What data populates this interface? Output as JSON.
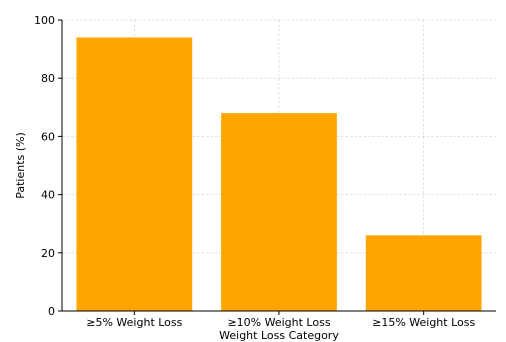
{
  "chart_data": {
    "type": "bar",
    "categories": [
      "≥5% Weight Loss",
      "≥10% Weight Loss",
      "≥15% Weight Loss"
    ],
    "values": [
      94,
      68,
      26
    ],
    "title": "",
    "xlabel": "Weight Loss Category",
    "ylabel": "Patients (%)",
    "ylim": [
      0,
      100
    ],
    "yticks": [
      0,
      20,
      40,
      60,
      80,
      100
    ],
    "grid": true,
    "bar_color": "#FFA500"
  }
}
